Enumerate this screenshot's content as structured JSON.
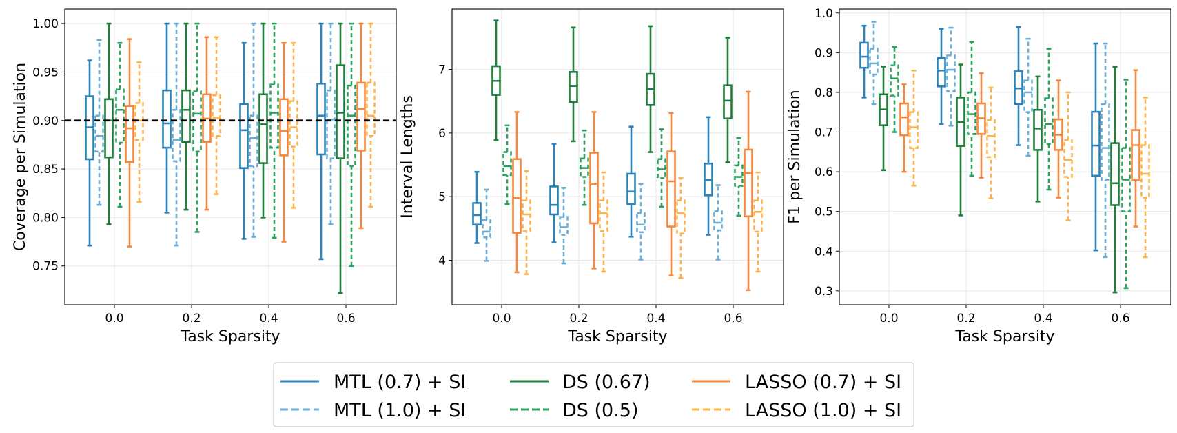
{
  "series_styles": [
    {
      "key": "mtl07",
      "color": "#2b83ba",
      "dashed": false
    },
    {
      "key": "mtl10",
      "color": "#6aaed6",
      "dashed": true
    },
    {
      "key": "ds067",
      "color": "#1f7f3b",
      "dashed": false
    },
    {
      "key": "ds05",
      "color": "#2ca25f",
      "dashed": true
    },
    {
      "key": "lasso07",
      "color": "#f7873a",
      "dashed": false
    },
    {
      "key": "lasso10",
      "color": "#fdb24c",
      "dashed": true
    }
  ],
  "legend": {
    "items": [
      "MTL (0.7) + SI",
      "MTL (1.0) + SI",
      "DS (0.67)",
      "DS (0.5)",
      "LASSO (0.7) + SI",
      "LASSO (1.0) + SI"
    ]
  },
  "chart_data": [
    {
      "type": "box",
      "title": "",
      "xlabel": "Task Sparsity",
      "ylabel": "Coverage per Simulation",
      "categories": [
        "0.0",
        "0.2",
        "0.4",
        "0.6"
      ],
      "ylim": [
        0.71,
        1.015
      ],
      "yticks": [
        "0.75",
        "0.80",
        "0.85",
        "0.90",
        "0.95",
        "1.00"
      ],
      "reference_line": 0.9,
      "series": [
        {
          "name": "MTL (0.7) + SI",
          "boxes": [
            [
              0.771,
              0.86,
              0.893,
              0.925,
              0.962
            ],
            [
              0.805,
              0.872,
              0.897,
              0.931,
              1.0
            ],
            [
              0.778,
              0.851,
              0.89,
              0.917,
              0.98
            ],
            [
              0.757,
              0.865,
              0.905,
              0.938,
              1.0
            ]
          ]
        },
        {
          "name": "MTL (1.0) + SI",
          "boxes": [
            [
              0.813,
              0.868,
              0.884,
              0.905,
              0.983
            ],
            [
              0.771,
              0.858,
              0.88,
              0.911,
              1.0
            ],
            [
              0.78,
              0.853,
              0.882,
              0.905,
              1.0
            ],
            [
              0.793,
              0.861,
              0.901,
              0.931,
              1.0
            ]
          ]
        },
        {
          "name": "DS (0.67)",
          "boxes": [
            [
              0.793,
              0.862,
              0.9,
              0.922,
              1.0
            ],
            [
              0.808,
              0.878,
              0.911,
              0.931,
              1.0
            ],
            [
              0.8,
              0.856,
              0.896,
              0.927,
              1.0
            ],
            [
              0.722,
              0.861,
              0.908,
              0.957,
              1.0
            ]
          ]
        },
        {
          "name": "DS (0.5)",
          "boxes": [
            [
              0.811,
              0.877,
              0.911,
              0.932,
              0.98
            ],
            [
              0.785,
              0.868,
              0.907,
              0.93,
              1.0
            ],
            [
              0.779,
              0.872,
              0.908,
              0.937,
              1.0
            ],
            [
              0.75,
              0.853,
              0.905,
              0.936,
              1.0
            ]
          ]
        },
        {
          "name": "LASSO (0.7) + SI",
          "boxes": [
            [
              0.77,
              0.857,
              0.892,
              0.915,
              0.984
            ],
            [
              0.808,
              0.878,
              0.902,
              0.927,
              0.986
            ],
            [
              0.775,
              0.864,
              0.889,
              0.922,
              0.98
            ],
            [
              0.789,
              0.869,
              0.912,
              0.939,
              1.0
            ]
          ]
        },
        {
          "name": "LASSO (1.0) + SI",
          "boxes": [
            [
              0.816,
              0.88,
              0.9,
              0.918,
              0.96
            ],
            [
              0.824,
              0.884,
              0.903,
              0.926,
              0.986
            ],
            [
              0.81,
              0.873,
              0.893,
              0.92,
              0.98
            ],
            [
              0.811,
              0.884,
              0.905,
              0.939,
              1.0
            ]
          ]
        }
      ]
    },
    {
      "type": "box",
      "title": "",
      "xlabel": "Task Sparsity",
      "ylabel": "Interval Lengths",
      "categories": [
        "0.0",
        "0.2",
        "0.4",
        "0.6"
      ],
      "ylim": [
        3.3,
        7.95
      ],
      "yticks": [
        "4",
        "5",
        "6",
        "7"
      ],
      "series": [
        {
          "name": "MTL (0.7) + SI",
          "boxes": [
            [
              4.27,
              4.56,
              4.71,
              4.9,
              5.39
            ],
            [
              4.28,
              4.72,
              4.87,
              5.16,
              5.83
            ],
            [
              4.37,
              4.88,
              5.08,
              5.36,
              6.1
            ],
            [
              4.4,
              5.02,
              5.26,
              5.52,
              6.25
            ]
          ]
        },
        {
          "name": "MTL (1.0) + SI",
          "boxes": [
            [
              3.99,
              4.36,
              4.45,
              4.63,
              5.11
            ],
            [
              3.95,
              4.4,
              4.52,
              4.68,
              5.14
            ],
            [
              4.01,
              4.44,
              4.56,
              4.74,
              5.2
            ],
            [
              4.01,
              4.47,
              4.59,
              4.77,
              5.18
            ]
          ]
        },
        {
          "name": "DS (0.67)",
          "boxes": [
            [
              5.89,
              6.6,
              6.82,
              7.05,
              7.77
            ],
            [
              5.87,
              6.49,
              6.74,
              6.96,
              7.66
            ],
            [
              5.7,
              6.44,
              6.69,
              6.93,
              7.68
            ],
            [
              5.54,
              6.23,
              6.51,
              6.75,
              7.5
            ]
          ]
        },
        {
          "name": "DS (0.5)",
          "boxes": [
            [
              4.88,
              5.34,
              5.48,
              5.7,
              6.12
            ],
            [
              4.87,
              5.31,
              5.45,
              5.6,
              6.04
            ],
            [
              4.84,
              5.29,
              5.43,
              5.59,
              6.06
            ],
            [
              4.7,
              5.17,
              5.31,
              5.49,
              5.92
            ]
          ]
        },
        {
          "name": "LASSO (0.7) + SI",
          "boxes": [
            [
              3.81,
              4.43,
              4.98,
              5.59,
              6.33
            ],
            [
              3.87,
              4.58,
              5.2,
              5.69,
              6.33
            ],
            [
              3.76,
              4.53,
              5.24,
              5.71,
              6.31
            ],
            [
              3.53,
              4.69,
              5.37,
              5.74,
              6.65
            ]
          ]
        },
        {
          "name": "LASSO (1.0) + SI",
          "boxes": [
            [
              3.78,
              4.46,
              4.72,
              4.94,
              5.4
            ],
            [
              3.82,
              4.46,
              4.74,
              4.94,
              5.38
            ],
            [
              3.72,
              4.42,
              4.74,
              4.94,
              5.29
            ],
            [
              3.82,
              4.45,
              4.76,
              4.94,
              5.38
            ]
          ]
        }
      ]
    },
    {
      "type": "box",
      "title": "",
      "xlabel": "Task Sparsity",
      "ylabel": "F1 per Simulation",
      "categories": [
        "0.0",
        "0.2",
        "0.4",
        "0.6"
      ],
      "ylim": [
        0.265,
        1.01
      ],
      "yticks": [
        "0.3",
        "0.4",
        "0.5",
        "0.6",
        "0.7",
        "0.8",
        "0.9",
        "1.0"
      ],
      "series": [
        {
          "name": "MTL (0.7) + SI",
          "boxes": [
            [
              0.787,
              0.862,
              0.89,
              0.925,
              0.968
            ],
            [
              0.72,
              0.815,
              0.855,
              0.887,
              0.96
            ],
            [
              0.667,
              0.77,
              0.81,
              0.853,
              0.965
            ],
            [
              0.402,
              0.59,
              0.666,
              0.751,
              0.923
            ]
          ]
        },
        {
          "name": "MTL (1.0) + SI",
          "boxes": [
            [
              0.77,
              0.845,
              0.873,
              0.91,
              0.978
            ],
            [
              0.716,
              0.803,
              0.857,
              0.893,
              0.963
            ],
            [
              0.64,
              0.75,
              0.8,
              0.83,
              0.935
            ],
            [
              0.385,
              0.58,
              0.66,
              0.77,
              0.923
            ]
          ]
        },
        {
          "name": "DS (0.67)",
          "boxes": [
            [
              0.604,
              0.717,
              0.757,
              0.795,
              0.865
            ],
            [
              0.49,
              0.665,
              0.725,
              0.787,
              0.87
            ],
            [
              0.525,
              0.655,
              0.709,
              0.756,
              0.84
            ],
            [
              0.296,
              0.516,
              0.571,
              0.672,
              0.864
            ]
          ]
        },
        {
          "name": "DS (0.5)",
          "boxes": [
            [
              0.7,
              0.792,
              0.835,
              0.868,
              0.915
            ],
            [
              0.59,
              0.695,
              0.745,
              0.8,
              0.927
            ],
            [
              0.555,
              0.67,
              0.72,
              0.785,
              0.91
            ],
            [
              0.307,
              0.5,
              0.58,
              0.66,
              0.832
            ]
          ]
        },
        {
          "name": "LASSO (0.7) + SI",
          "boxes": [
            [
              0.6,
              0.692,
              0.737,
              0.772,
              0.82
            ],
            [
              0.585,
              0.695,
              0.735,
              0.772,
              0.848
            ],
            [
              0.535,
              0.655,
              0.693,
              0.732,
              0.83
            ],
            [
              0.462,
              0.58,
              0.667,
              0.705,
              0.856
            ]
          ]
        },
        {
          "name": "LASSO (1.0) + SI",
          "boxes": [
            [
              0.565,
              0.66,
              0.712,
              0.75,
              0.855
            ],
            [
              0.533,
              0.637,
              0.69,
              0.73,
              0.812
            ],
            [
              0.478,
              0.587,
              0.63,
              0.68,
              0.8
            ],
            [
              0.385,
              0.535,
              0.595,
              0.667,
              0.787
            ]
          ]
        }
      ]
    }
  ]
}
